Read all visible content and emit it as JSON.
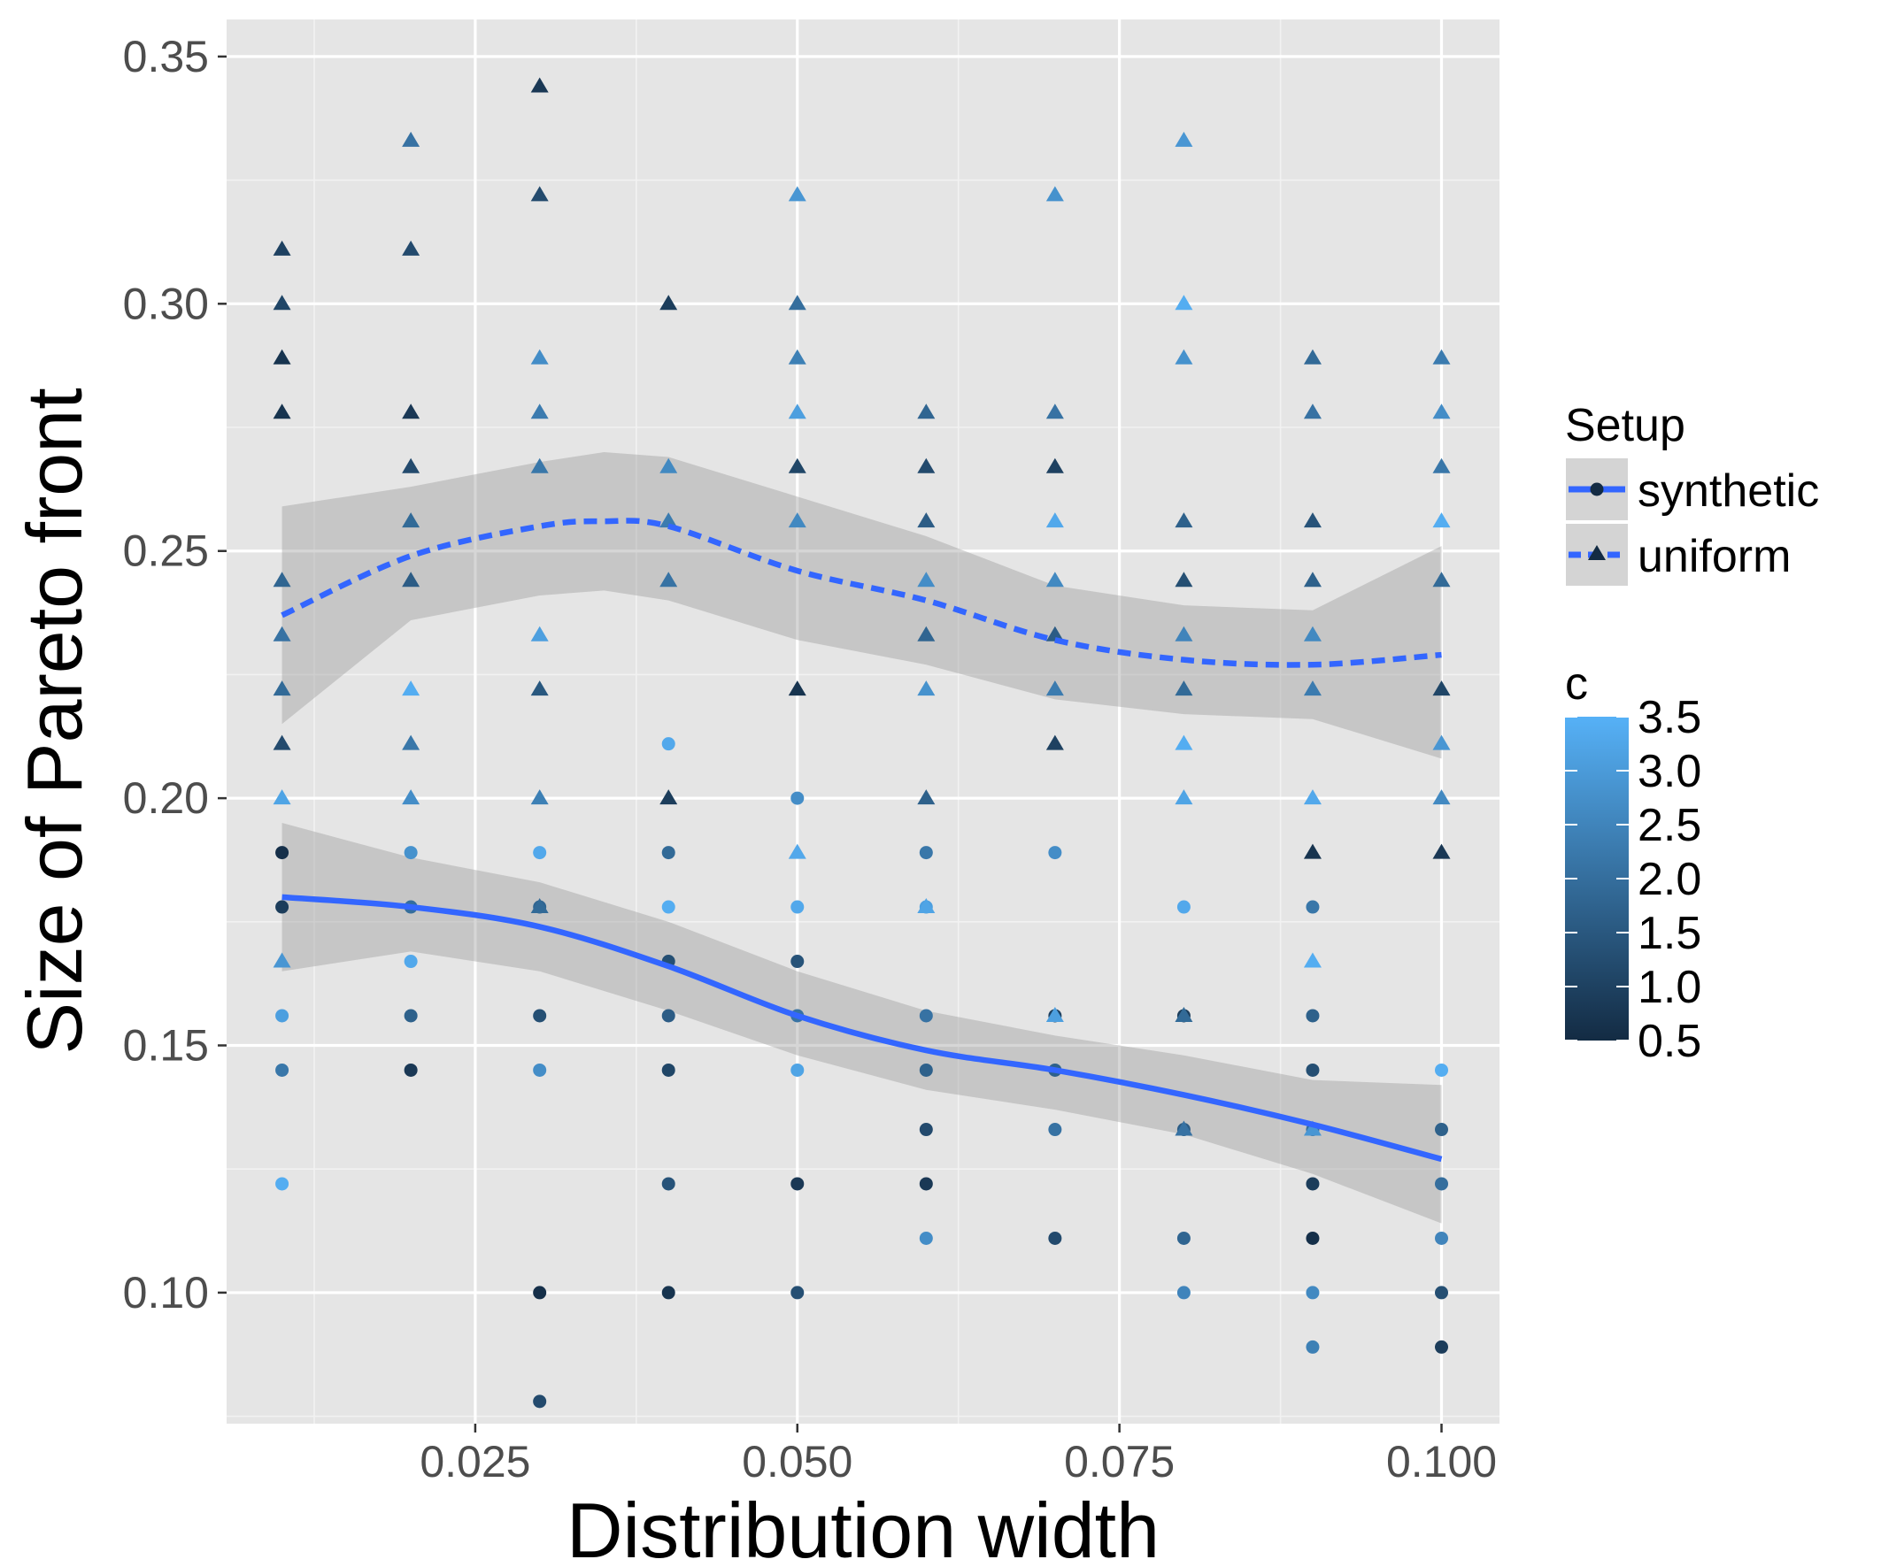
{
  "chart_data": {
    "type": "scatter",
    "title": "",
    "xlabel": "Distribution width",
    "ylabel": "Size of Pareto front",
    "xlim": [
      0.0057,
      0.1045
    ],
    "ylim": [
      0.0735,
      0.3575
    ],
    "x_ticks": [
      0.025,
      0.05,
      0.075,
      0.1
    ],
    "x_tick_labels": [
      "0.025",
      "0.050",
      "0.075",
      "0.100"
    ],
    "y_ticks": [
      0.1,
      0.15,
      0.2,
      0.25,
      0.3,
      0.35
    ],
    "y_tick_labels": [
      "0.10",
      "0.15",
      "0.20",
      "0.25",
      "0.30",
      "0.35"
    ],
    "grid": true,
    "legend_position": "right",
    "colorbar": {
      "title": "c",
      "min": 0.5,
      "max": 3.5,
      "ticks": [
        0.5,
        1.0,
        1.5,
        2.0,
        2.5,
        3.0,
        3.5
      ],
      "tick_labels": [
        "0.5",
        "1.0",
        "1.5",
        "2.0",
        "2.5",
        "3.0",
        "3.5"
      ],
      "low_color": "#132b43",
      "high_color": "#56b1f7"
    },
    "legend": {
      "title": "Setup",
      "entries": [
        {
          "label": "synthetic",
          "shape": "circle",
          "linetype": "solid"
        },
        {
          "label": "uniform",
          "shape": "triangle",
          "linetype": "dashed"
        }
      ]
    },
    "smooth_color": "#3366ff",
    "ribbon_color": "#999999",
    "series": [
      {
        "name": "synthetic",
        "shape": "circle",
        "points": [
          {
            "x": 0.01,
            "y": 0.189,
            "c": 0.6
          },
          {
            "x": 0.01,
            "y": 0.178,
            "c": 0.9
          },
          {
            "x": 0.01,
            "y": 0.156,
            "c": 3.1
          },
          {
            "x": 0.01,
            "y": 0.145,
            "c": 2.2
          },
          {
            "x": 0.01,
            "y": 0.122,
            "c": 3.4
          },
          {
            "x": 0.02,
            "y": 0.189,
            "c": 2.8
          },
          {
            "x": 0.02,
            "y": 0.178,
            "c": 2.0
          },
          {
            "x": 0.02,
            "y": 0.167,
            "c": 3.3
          },
          {
            "x": 0.02,
            "y": 0.156,
            "c": 1.7
          },
          {
            "x": 0.02,
            "y": 0.145,
            "c": 0.8
          },
          {
            "x": 0.03,
            "y": 0.189,
            "c": 3.3
          },
          {
            "x": 0.03,
            "y": 0.178,
            "c": 1.8
          },
          {
            "x": 0.03,
            "y": 0.156,
            "c": 1.3
          },
          {
            "x": 0.03,
            "y": 0.145,
            "c": 2.7
          },
          {
            "x": 0.03,
            "y": 0.1,
            "c": 0.6
          },
          {
            "x": 0.03,
            "y": 0.078,
            "c": 1.2
          },
          {
            "x": 0.04,
            "y": 0.211,
            "c": 3.3
          },
          {
            "x": 0.04,
            "y": 0.189,
            "c": 1.9
          },
          {
            "x": 0.04,
            "y": 0.178,
            "c": 3.4
          },
          {
            "x": 0.04,
            "y": 0.167,
            "c": 1.3
          },
          {
            "x": 0.04,
            "y": 0.156,
            "c": 1.6
          },
          {
            "x": 0.04,
            "y": 0.145,
            "c": 1.1
          },
          {
            "x": 0.04,
            "y": 0.122,
            "c": 1.4
          },
          {
            "x": 0.04,
            "y": 0.1,
            "c": 0.7
          },
          {
            "x": 0.05,
            "y": 0.2,
            "c": 2.7
          },
          {
            "x": 0.05,
            "y": 0.178,
            "c": 3.3
          },
          {
            "x": 0.05,
            "y": 0.167,
            "c": 1.4
          },
          {
            "x": 0.05,
            "y": 0.156,
            "c": 2.1
          },
          {
            "x": 0.05,
            "y": 0.145,
            "c": 3.2
          },
          {
            "x": 0.05,
            "y": 0.122,
            "c": 0.8
          },
          {
            "x": 0.05,
            "y": 0.1,
            "c": 1.3
          },
          {
            "x": 0.06,
            "y": 0.189,
            "c": 2.2
          },
          {
            "x": 0.06,
            "y": 0.178,
            "c": 3.1
          },
          {
            "x": 0.06,
            "y": 0.156,
            "c": 2.1
          },
          {
            "x": 0.06,
            "y": 0.145,
            "c": 1.7
          },
          {
            "x": 0.06,
            "y": 0.133,
            "c": 1.2
          },
          {
            "x": 0.06,
            "y": 0.122,
            "c": 0.8
          },
          {
            "x": 0.06,
            "y": 0.111,
            "c": 2.7
          },
          {
            "x": 0.07,
            "y": 0.189,
            "c": 2.7
          },
          {
            "x": 0.07,
            "y": 0.156,
            "c": 1.0
          },
          {
            "x": 0.07,
            "y": 0.145,
            "c": 1.7
          },
          {
            "x": 0.07,
            "y": 0.133,
            "c": 2.1
          },
          {
            "x": 0.07,
            "y": 0.111,
            "c": 1.2
          },
          {
            "x": 0.08,
            "y": 0.178,
            "c": 3.3
          },
          {
            "x": 0.08,
            "y": 0.156,
            "c": 0.9
          },
          {
            "x": 0.08,
            "y": 0.133,
            "c": 1.6
          },
          {
            "x": 0.08,
            "y": 0.111,
            "c": 1.8
          },
          {
            "x": 0.08,
            "y": 0.1,
            "c": 2.5
          },
          {
            "x": 0.09,
            "y": 0.178,
            "c": 2.2
          },
          {
            "x": 0.09,
            "y": 0.156,
            "c": 1.7
          },
          {
            "x": 0.09,
            "y": 0.145,
            "c": 1.3
          },
          {
            "x": 0.09,
            "y": 0.133,
            "c": 2.0
          },
          {
            "x": 0.09,
            "y": 0.122,
            "c": 0.9
          },
          {
            "x": 0.09,
            "y": 0.111,
            "c": 0.6
          },
          {
            "x": 0.09,
            "y": 0.1,
            "c": 2.6
          },
          {
            "x": 0.09,
            "y": 0.089,
            "c": 2.4
          },
          {
            "x": 0.1,
            "y": 0.145,
            "c": 3.4
          },
          {
            "x": 0.1,
            "y": 0.133,
            "c": 1.7
          },
          {
            "x": 0.1,
            "y": 0.122,
            "c": 2.0
          },
          {
            "x": 0.1,
            "y": 0.111,
            "c": 2.5
          },
          {
            "x": 0.1,
            "y": 0.1,
            "c": 1.3
          },
          {
            "x": 0.1,
            "y": 0.089,
            "c": 0.9
          }
        ],
        "smooth": [
          [
            0.01,
            0.18
          ],
          [
            0.02,
            0.178
          ],
          [
            0.03,
            0.174
          ],
          [
            0.04,
            0.166
          ],
          [
            0.05,
            0.156
          ],
          [
            0.06,
            0.149
          ],
          [
            0.07,
            0.145
          ],
          [
            0.08,
            0.14
          ],
          [
            0.09,
            0.134
          ],
          [
            0.1,
            0.127
          ]
        ],
        "ribbon_upper": [
          [
            0.01,
            0.195
          ],
          [
            0.02,
            0.188
          ],
          [
            0.03,
            0.183
          ],
          [
            0.04,
            0.175
          ],
          [
            0.05,
            0.165
          ],
          [
            0.06,
            0.157
          ],
          [
            0.07,
            0.152
          ],
          [
            0.08,
            0.148
          ],
          [
            0.09,
            0.143
          ],
          [
            0.1,
            0.142
          ]
        ],
        "ribbon_lower": [
          [
            0.01,
            0.165
          ],
          [
            0.02,
            0.169
          ],
          [
            0.03,
            0.165
          ],
          [
            0.04,
            0.157
          ],
          [
            0.05,
            0.148
          ],
          [
            0.06,
            0.141
          ],
          [
            0.07,
            0.137
          ],
          [
            0.08,
            0.132
          ],
          [
            0.09,
            0.124
          ],
          [
            0.1,
            0.114
          ]
        ]
      },
      {
        "name": "uniform",
        "shape": "triangle",
        "points": [
          {
            "x": 0.01,
            "y": 0.311,
            "c": 1.0
          },
          {
            "x": 0.01,
            "y": 0.3,
            "c": 1.1
          },
          {
            "x": 0.01,
            "y": 0.289,
            "c": 0.7
          },
          {
            "x": 0.01,
            "y": 0.278,
            "c": 0.7
          },
          {
            "x": 0.01,
            "y": 0.244,
            "c": 1.8
          },
          {
            "x": 0.01,
            "y": 0.233,
            "c": 2.1
          },
          {
            "x": 0.01,
            "y": 0.222,
            "c": 1.9
          },
          {
            "x": 0.01,
            "y": 0.211,
            "c": 1.2
          },
          {
            "x": 0.01,
            "y": 0.2,
            "c": 3.2
          },
          {
            "x": 0.01,
            "y": 0.167,
            "c": 2.9
          },
          {
            "x": 0.02,
            "y": 0.333,
            "c": 2.1
          },
          {
            "x": 0.02,
            "y": 0.311,
            "c": 1.2
          },
          {
            "x": 0.02,
            "y": 0.278,
            "c": 0.8
          },
          {
            "x": 0.02,
            "y": 0.267,
            "c": 1.2
          },
          {
            "x": 0.02,
            "y": 0.256,
            "c": 1.9
          },
          {
            "x": 0.02,
            "y": 0.244,
            "c": 1.6
          },
          {
            "x": 0.02,
            "y": 0.222,
            "c": 3.4
          },
          {
            "x": 0.02,
            "y": 0.211,
            "c": 2.2
          },
          {
            "x": 0.02,
            "y": 0.2,
            "c": 2.7
          },
          {
            "x": 0.03,
            "y": 0.344,
            "c": 0.8
          },
          {
            "x": 0.03,
            "y": 0.322,
            "c": 1.2
          },
          {
            "x": 0.03,
            "y": 0.289,
            "c": 2.7
          },
          {
            "x": 0.03,
            "y": 0.278,
            "c": 2.3
          },
          {
            "x": 0.03,
            "y": 0.267,
            "c": 2.2
          },
          {
            "x": 0.03,
            "y": 0.233,
            "c": 3.1
          },
          {
            "x": 0.03,
            "y": 0.222,
            "c": 1.5
          },
          {
            "x": 0.03,
            "y": 0.2,
            "c": 2.4
          },
          {
            "x": 0.03,
            "y": 0.178,
            "c": 1.9
          },
          {
            "x": 0.04,
            "y": 0.3,
            "c": 0.9
          },
          {
            "x": 0.04,
            "y": 0.267,
            "c": 2.6
          },
          {
            "x": 0.04,
            "y": 0.256,
            "c": 2.3
          },
          {
            "x": 0.04,
            "y": 0.244,
            "c": 2.1
          },
          {
            "x": 0.04,
            "y": 0.2,
            "c": 0.9
          },
          {
            "x": 0.05,
            "y": 0.322,
            "c": 2.9
          },
          {
            "x": 0.05,
            "y": 0.3,
            "c": 2.0
          },
          {
            "x": 0.05,
            "y": 0.289,
            "c": 2.4
          },
          {
            "x": 0.05,
            "y": 0.278,
            "c": 3.1
          },
          {
            "x": 0.05,
            "y": 0.267,
            "c": 1.1
          },
          {
            "x": 0.05,
            "y": 0.256,
            "c": 2.6
          },
          {
            "x": 0.05,
            "y": 0.222,
            "c": 0.7
          },
          {
            "x": 0.05,
            "y": 0.189,
            "c": 3.3
          },
          {
            "x": 0.06,
            "y": 0.278,
            "c": 1.8
          },
          {
            "x": 0.06,
            "y": 0.267,
            "c": 1.2
          },
          {
            "x": 0.06,
            "y": 0.256,
            "c": 1.6
          },
          {
            "x": 0.06,
            "y": 0.244,
            "c": 2.7
          },
          {
            "x": 0.06,
            "y": 0.233,
            "c": 1.8
          },
          {
            "x": 0.06,
            "y": 0.222,
            "c": 2.8
          },
          {
            "x": 0.06,
            "y": 0.2,
            "c": 1.7
          },
          {
            "x": 0.06,
            "y": 0.178,
            "c": 3.2
          },
          {
            "x": 0.07,
            "y": 0.322,
            "c": 2.8
          },
          {
            "x": 0.07,
            "y": 0.278,
            "c": 2.1
          },
          {
            "x": 0.07,
            "y": 0.267,
            "c": 1.0
          },
          {
            "x": 0.07,
            "y": 0.256,
            "c": 3.3
          },
          {
            "x": 0.07,
            "y": 0.244,
            "c": 2.6
          },
          {
            "x": 0.07,
            "y": 0.233,
            "c": 1.6
          },
          {
            "x": 0.07,
            "y": 0.222,
            "c": 2.3
          },
          {
            "x": 0.07,
            "y": 0.211,
            "c": 1.0
          },
          {
            "x": 0.07,
            "y": 0.156,
            "c": 3.1
          },
          {
            "x": 0.08,
            "y": 0.333,
            "c": 2.9
          },
          {
            "x": 0.08,
            "y": 0.3,
            "c": 3.4
          },
          {
            "x": 0.08,
            "y": 0.289,
            "c": 2.8
          },
          {
            "x": 0.08,
            "y": 0.256,
            "c": 1.7
          },
          {
            "x": 0.08,
            "y": 0.244,
            "c": 1.3
          },
          {
            "x": 0.08,
            "y": 0.233,
            "c": 2.5
          },
          {
            "x": 0.08,
            "y": 0.222,
            "c": 1.9
          },
          {
            "x": 0.08,
            "y": 0.211,
            "c": 3.4
          },
          {
            "x": 0.08,
            "y": 0.2,
            "c": 3.2
          },
          {
            "x": 0.08,
            "y": 0.156,
            "c": 1.9
          },
          {
            "x": 0.08,
            "y": 0.133,
            "c": 2.1
          },
          {
            "x": 0.09,
            "y": 0.289,
            "c": 1.9
          },
          {
            "x": 0.09,
            "y": 0.278,
            "c": 2.1
          },
          {
            "x": 0.09,
            "y": 0.256,
            "c": 1.4
          },
          {
            "x": 0.09,
            "y": 0.244,
            "c": 1.7
          },
          {
            "x": 0.09,
            "y": 0.233,
            "c": 2.6
          },
          {
            "x": 0.09,
            "y": 0.222,
            "c": 2.3
          },
          {
            "x": 0.09,
            "y": 0.2,
            "c": 3.3
          },
          {
            "x": 0.09,
            "y": 0.189,
            "c": 0.7
          },
          {
            "x": 0.09,
            "y": 0.167,
            "c": 3.4
          },
          {
            "x": 0.09,
            "y": 0.133,
            "c": 2.9
          },
          {
            "x": 0.1,
            "y": 0.289,
            "c": 2.3
          },
          {
            "x": 0.1,
            "y": 0.278,
            "c": 2.7
          },
          {
            "x": 0.1,
            "y": 0.267,
            "c": 2.2
          },
          {
            "x": 0.1,
            "y": 0.256,
            "c": 3.4
          },
          {
            "x": 0.1,
            "y": 0.244,
            "c": 1.9
          },
          {
            "x": 0.1,
            "y": 0.222,
            "c": 1.1
          },
          {
            "x": 0.1,
            "y": 0.211,
            "c": 2.9
          },
          {
            "x": 0.1,
            "y": 0.2,
            "c": 2.6
          },
          {
            "x": 0.1,
            "y": 0.189,
            "c": 0.8
          }
        ],
        "smooth": [
          [
            0.01,
            0.237
          ],
          [
            0.02,
            0.249
          ],
          [
            0.03,
            0.255
          ],
          [
            0.035,
            0.256
          ],
          [
            0.04,
            0.255
          ],
          [
            0.05,
            0.246
          ],
          [
            0.06,
            0.24
          ],
          [
            0.07,
            0.232
          ],
          [
            0.08,
            0.228
          ],
          [
            0.09,
            0.227
          ],
          [
            0.1,
            0.229
          ]
        ],
        "ribbon_upper": [
          [
            0.01,
            0.259
          ],
          [
            0.02,
            0.263
          ],
          [
            0.03,
            0.268
          ],
          [
            0.035,
            0.27
          ],
          [
            0.04,
            0.269
          ],
          [
            0.05,
            0.261
          ],
          [
            0.06,
            0.253
          ],
          [
            0.07,
            0.243
          ],
          [
            0.08,
            0.239
          ],
          [
            0.09,
            0.238
          ],
          [
            0.1,
            0.251
          ]
        ],
        "ribbon_lower": [
          [
            0.01,
            0.215
          ],
          [
            0.02,
            0.236
          ],
          [
            0.03,
            0.241
          ],
          [
            0.035,
            0.242
          ],
          [
            0.04,
            0.24
          ],
          [
            0.05,
            0.232
          ],
          [
            0.06,
            0.227
          ],
          [
            0.07,
            0.22
          ],
          [
            0.08,
            0.217
          ],
          [
            0.09,
            0.216
          ],
          [
            0.1,
            0.208
          ]
        ]
      }
    ]
  }
}
